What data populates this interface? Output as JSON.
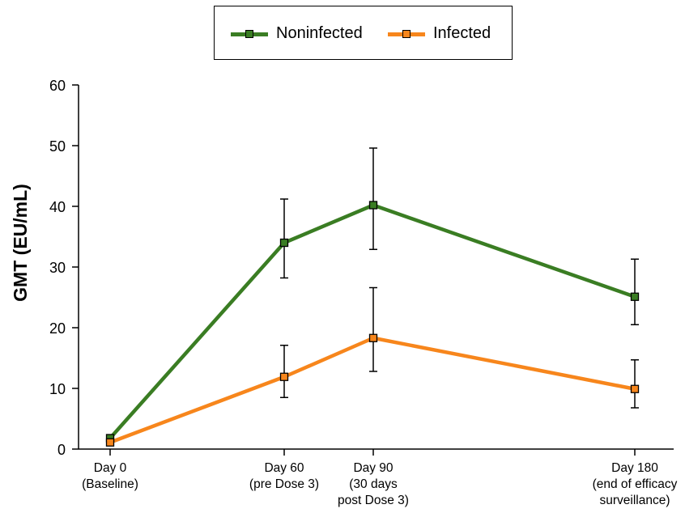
{
  "chart_data": {
    "type": "line",
    "title": "",
    "xlabel": "",
    "ylabel": "GMT (EU/mL)",
    "x": [
      0,
      60,
      90,
      180
    ],
    "x_tick_labels": [
      [
        "Day 0",
        "(Baseline)"
      ],
      [
        "Day 60",
        "(pre Dose 3)"
      ],
      [
        "Day 90",
        "(30 days",
        "post Dose 3)"
      ],
      [
        "Day 180",
        "(end of efficacy",
        "surveillance)"
      ]
    ],
    "ylim": [
      0,
      60
    ],
    "yticks": [
      0,
      10,
      20,
      30,
      40,
      50,
      60
    ],
    "grid": false,
    "legend_position": "top-center",
    "series": [
      {
        "name": "Noninfected",
        "color": "#3a7d23",
        "values": [
          1.8,
          34.0,
          40.2,
          25.1
        ],
        "err_low": [
          1.8,
          28.2,
          32.9,
          20.5
        ],
        "err_high": [
          1.8,
          41.2,
          49.6,
          31.3
        ]
      },
      {
        "name": "Infected",
        "color": "#f7861c",
        "values": [
          1.1,
          11.9,
          18.3,
          9.9
        ],
        "err_low": [
          1.1,
          8.5,
          12.8,
          6.8
        ],
        "err_high": [
          1.1,
          17.1,
          26.6,
          14.7
        ]
      }
    ]
  }
}
